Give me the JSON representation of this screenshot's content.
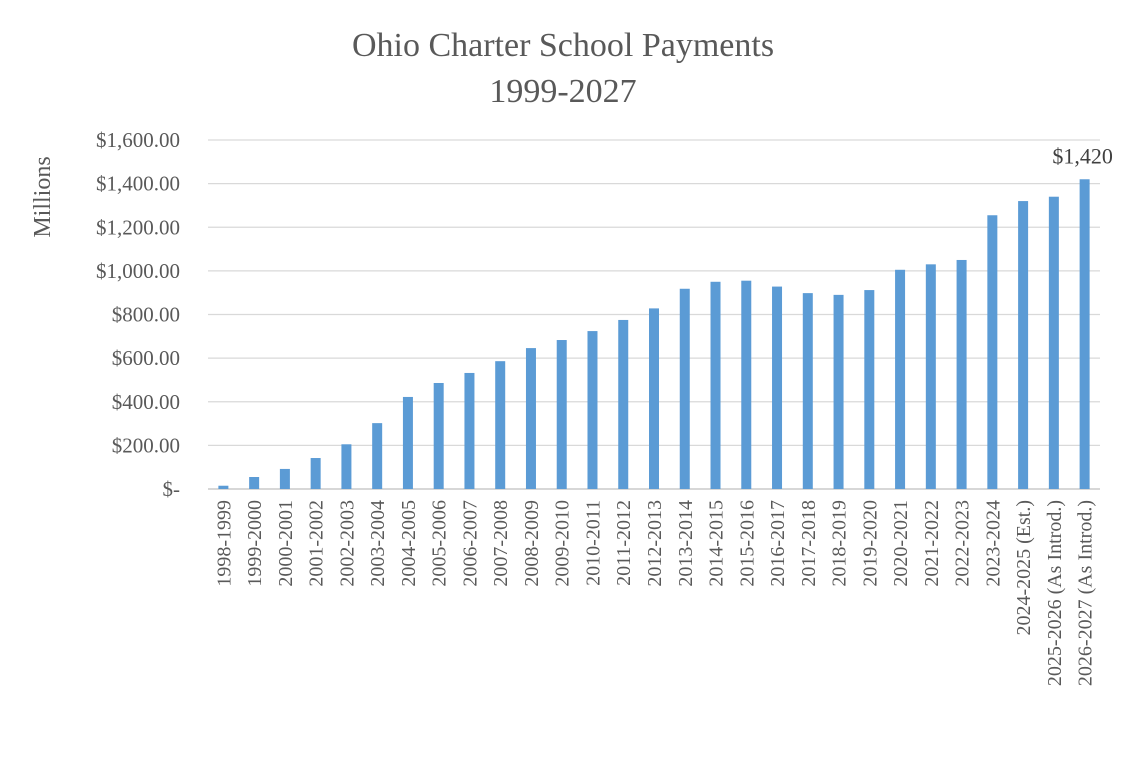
{
  "chart_data": {
    "type": "bar",
    "title": "Ohio Charter School Payments",
    "subtitle": "1999-2027",
    "xlabel": "",
    "ylabel": "Millions",
    "ylim": [
      0,
      1600
    ],
    "y_ticks": [
      0,
      200,
      400,
      600,
      800,
      1000,
      1200,
      1400,
      1600
    ],
    "y_tick_labels": [
      "$-",
      "$200.00",
      "$400.00",
      "$600.00",
      "$800.00",
      "$1,000.00",
      "$1,200.00",
      "$1,400.00",
      "$1,600.00"
    ],
    "grid": true,
    "legend": "none",
    "bar_color": "#5b9bd5",
    "categories": [
      "1998-1999",
      "1999-2000",
      "2000-2001",
      "2001-2002",
      "2002-2003",
      "2003-2004",
      "2004-2005",
      "2005-2006",
      "2006-2007",
      "2007-2008",
      "2008-2009",
      "2009-2010",
      "2010-2011",
      "2011-2012",
      "2012-2013",
      "2013-2014",
      "2014-2015",
      "2015-2016",
      "2016-2017",
      "2017-2018",
      "2018-2019",
      "2019-2020",
      "2020-2021",
      "2021-2022",
      "2022-2023",
      "2023-2024",
      "2024-2025 (Est.)",
      "2025-2026 (As Introd.)",
      "2026-2027 (As Introd.)"
    ],
    "values": [
      15,
      55,
      92,
      142,
      205,
      302,
      422,
      486,
      532,
      586,
      646,
      683,
      724,
      775,
      828,
      918,
      950,
      955,
      928,
      898,
      890,
      912,
      1005,
      1030,
      1050,
      1255,
      1320,
      1340,
      1420
    ],
    "data_labels": [
      {
        "index": 28,
        "text": "$1,420"
      }
    ]
  }
}
